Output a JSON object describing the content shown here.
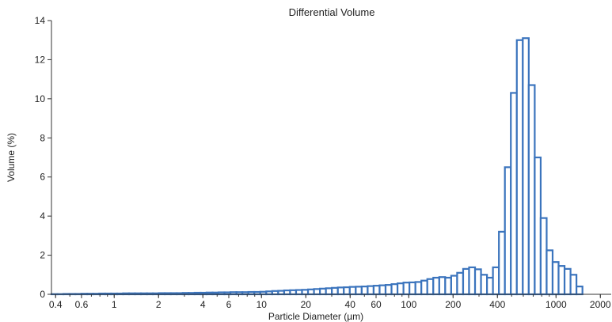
{
  "chart_data": {
    "type": "bar",
    "title": "Differential Volume",
    "xlabel": "Particle Diameter (µm)",
    "ylabel": "Volume (%)",
    "x_scale": "log",
    "xlim": [
      0.375,
      2400
    ],
    "ylim": [
      0,
      14
    ],
    "x_ticks": [
      "0.4",
      "0.6",
      "1",
      "2",
      "4",
      "6",
      "10",
      "20",
      "40",
      "60",
      "100",
      "200",
      "400",
      "1000",
      "2000"
    ],
    "y_ticks": [
      "0",
      "2",
      "4",
      "6",
      "8",
      "10",
      "12",
      "14"
    ],
    "grid": false,
    "legend": "none",
    "bar_color": "#3b74bd",
    "bin_edges": [
      0.375,
      0.412,
      0.452,
      0.496,
      0.545,
      0.598,
      0.656,
      0.721,
      0.791,
      0.868,
      0.953,
      1.047,
      1.149,
      1.261,
      1.385,
      1.52,
      1.669,
      1.832,
      2.011,
      2.208,
      2.423,
      2.66,
      2.92,
      3.206,
      3.519,
      3.863,
      4.24,
      4.655,
      5.11,
      5.61,
      6.158,
      6.76,
      7.421,
      8.147,
      8.943,
      9.818,
      10.78,
      11.83,
      12.99,
      14.26,
      15.65,
      17.18,
      18.86,
      20.71,
      22.73,
      24.95,
      27.39,
      30.07,
      33.01,
      36.24,
      39.78,
      43.67,
      47.94,
      52.62,
      57.77,
      63.42,
      69.62,
      76.42,
      83.9,
      92.09,
      101.1,
      111.0,
      121.8,
      133.7,
      146.8,
      161.2,
      176.9,
      194.2,
      213.2,
      234.1,
      256.9,
      282.1,
      309.6,
      339.9,
      373.1,
      409.6,
      449.7,
      493.6,
      541.9,
      594.9,
      653.0,
      716.9,
      786.9,
      863.9,
      948.3,
      1041,
      1143,
      1255,
      1377,
      1512
    ],
    "values": [
      0.01,
      0.01,
      0.02,
      0.02,
      0.02,
      0.03,
      0.03,
      0.03,
      0.04,
      0.04,
      0.04,
      0.04,
      0.05,
      0.05,
      0.05,
      0.05,
      0.05,
      0.05,
      0.06,
      0.06,
      0.06,
      0.06,
      0.07,
      0.07,
      0.08,
      0.08,
      0.09,
      0.09,
      0.1,
      0.1,
      0.11,
      0.11,
      0.11,
      0.12,
      0.12,
      0.13,
      0.15,
      0.17,
      0.18,
      0.2,
      0.21,
      0.22,
      0.23,
      0.25,
      0.27,
      0.29,
      0.31,
      0.33,
      0.35,
      0.36,
      0.38,
      0.39,
      0.4,
      0.42,
      0.44,
      0.46,
      0.48,
      0.52,
      0.56,
      0.6,
      0.61,
      0.63,
      0.7,
      0.78,
      0.85,
      0.88,
      0.85,
      0.95,
      1.1,
      1.3,
      1.38,
      1.28,
      1.0,
      0.85,
      1.38,
      3.2,
      6.5,
      10.3,
      13.0,
      13.1,
      10.7,
      7.0,
      3.9,
      2.25,
      1.65,
      1.45,
      1.3,
      1.0,
      0.4
    ]
  }
}
